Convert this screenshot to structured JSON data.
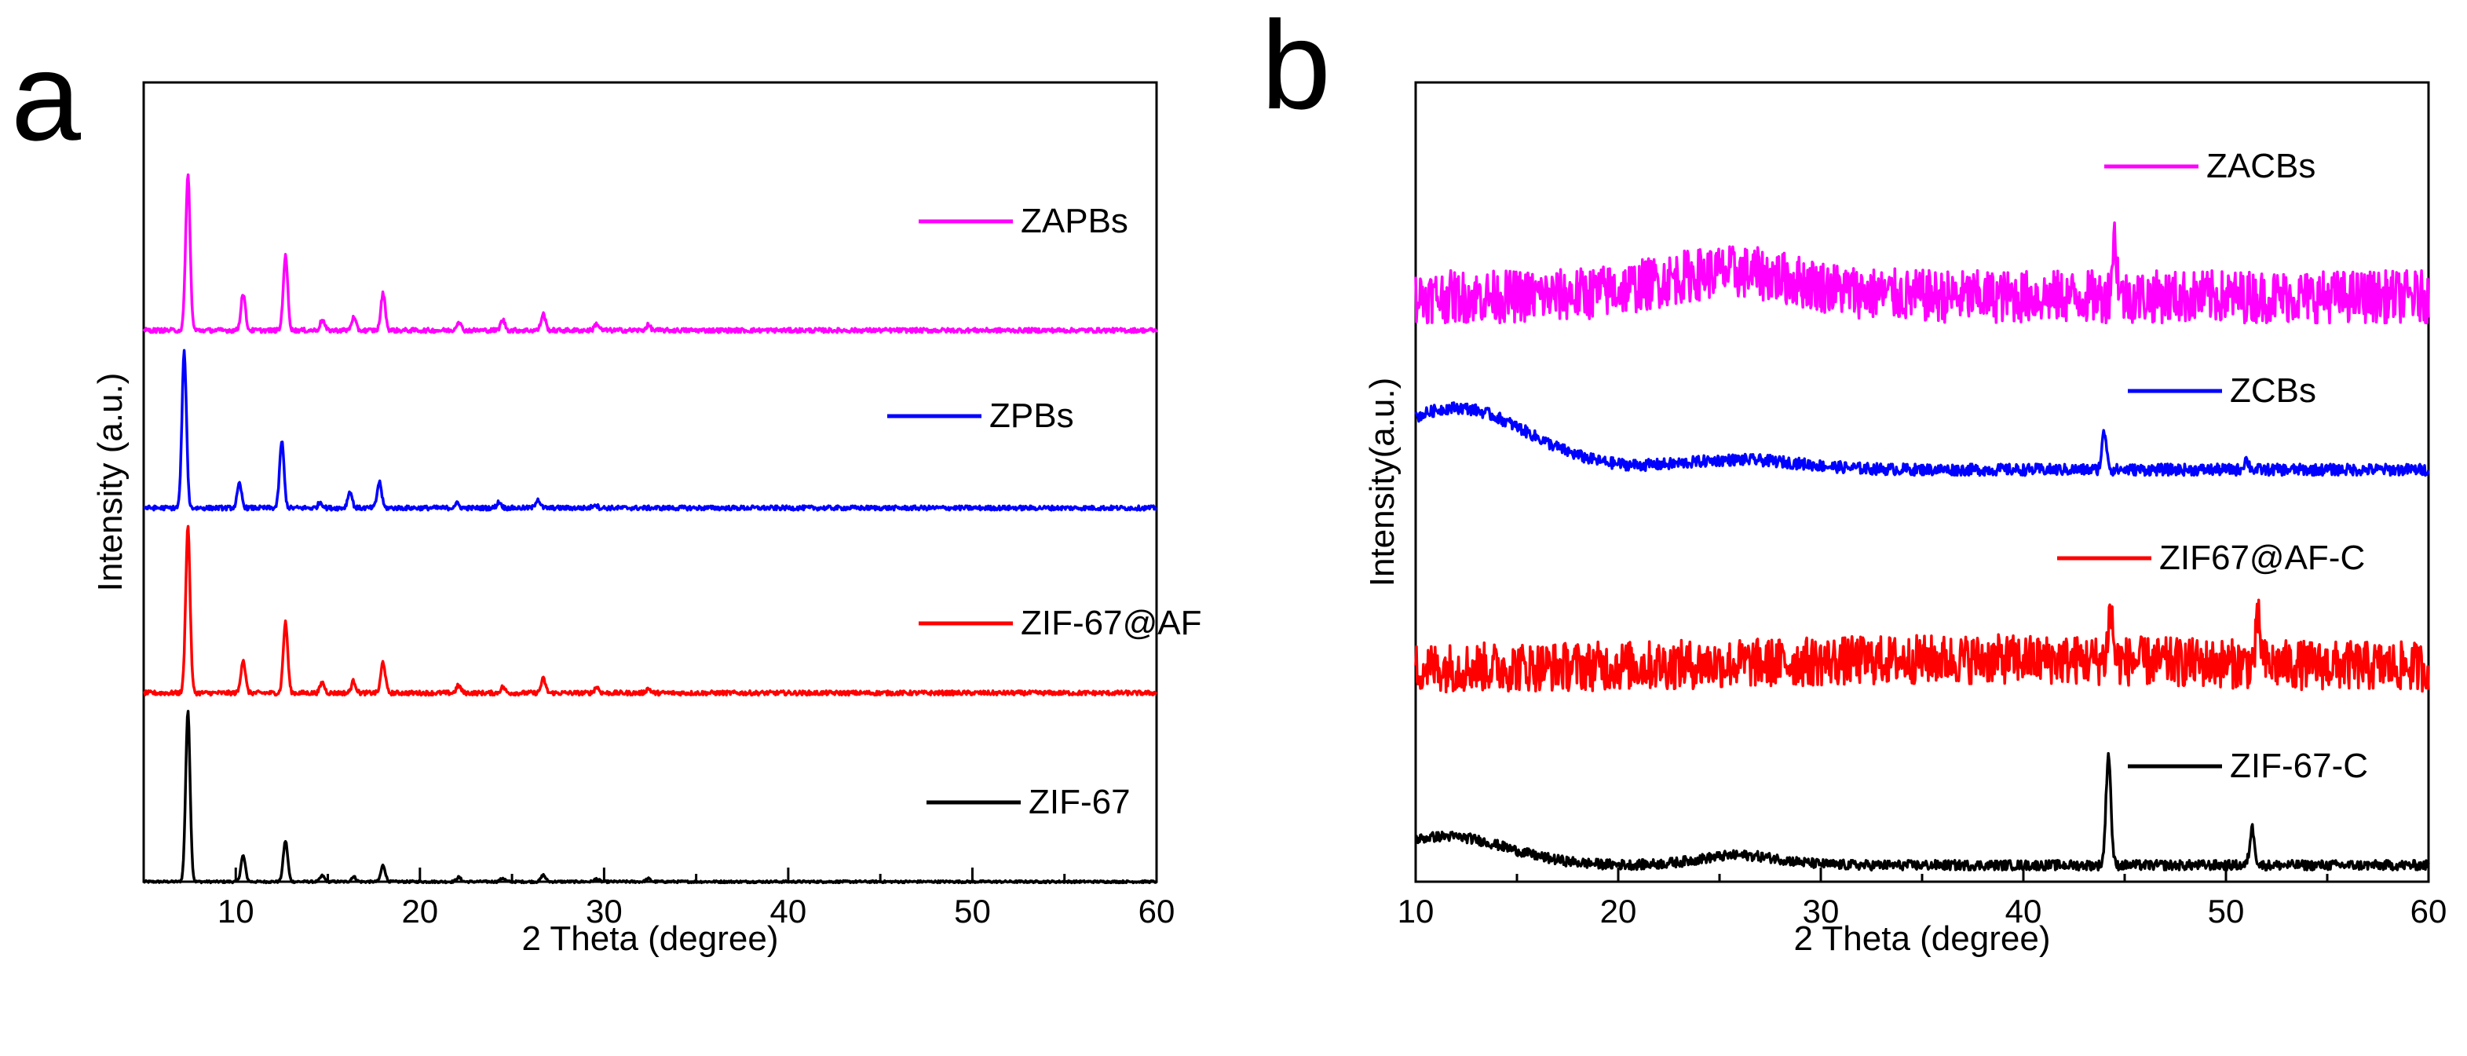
{
  "figure": {
    "panels": [
      {
        "label": "a"
      },
      {
        "label": "b"
      }
    ]
  },
  "chart_data": [
    {
      "panel": "a",
      "type": "line",
      "title": "",
      "xlabel": "2 Theta (degree)",
      "ylabel": "Intensity (a.u.)",
      "xlim": [
        5,
        60
      ],
      "xticks": [
        10,
        20,
        30,
        40,
        50,
        60
      ],
      "ylim": [
        0,
        10.8
      ],
      "legend": "inline, right of each trace",
      "series": [
        {
          "name": "ZIF-67",
          "color": "#000000",
          "baseline": 0.0,
          "noise": 0.015,
          "peaks": [
            [
              7.4,
              2.3
            ],
            [
              10.4,
              0.35
            ],
            [
              12.7,
              0.55
            ],
            [
              14.7,
              0.08
            ],
            [
              16.4,
              0.07
            ],
            [
              18.0,
              0.22
            ],
            [
              22.1,
              0.06
            ],
            [
              24.5,
              0.05
            ],
            [
              26.7,
              0.09
            ],
            [
              29.6,
              0.04
            ],
            [
              32.4,
              0.04
            ]
          ]
        },
        {
          "name": "ZIF-67@AF",
          "color": "#ff0000",
          "baseline": 2.55,
          "noise": 0.03,
          "peaks": [
            [
              7.4,
              2.25
            ],
            [
              10.4,
              0.45
            ],
            [
              12.7,
              0.95
            ],
            [
              14.7,
              0.14
            ],
            [
              16.4,
              0.16
            ],
            [
              18.0,
              0.42
            ],
            [
              22.1,
              0.1
            ],
            [
              24.5,
              0.08
            ],
            [
              26.7,
              0.19
            ],
            [
              29.6,
              0.08
            ],
            [
              32.4,
              0.06
            ]
          ]
        },
        {
          "name": "ZPBs",
          "color": "#0000ff",
          "baseline": 5.05,
          "noise": 0.03,
          "peaks": [
            [
              7.2,
              2.1
            ],
            [
              10.2,
              0.32
            ],
            [
              12.5,
              0.9
            ],
            [
              14.6,
              0.08
            ],
            [
              16.2,
              0.22
            ],
            [
              17.8,
              0.35
            ],
            [
              22.0,
              0.06
            ],
            [
              24.3,
              0.08
            ],
            [
              26.4,
              0.12
            ],
            [
              29.5,
              0.05
            ]
          ]
        },
        {
          "name": "ZAPBs",
          "color": "#ff00ff",
          "baseline": 7.45,
          "noise": 0.03,
          "peaks": [
            [
              7.4,
              2.1
            ],
            [
              10.4,
              0.5
            ],
            [
              12.7,
              1.0
            ],
            [
              14.7,
              0.14
            ],
            [
              16.4,
              0.17
            ],
            [
              18.0,
              0.5
            ],
            [
              22.1,
              0.12
            ],
            [
              24.5,
              0.14
            ],
            [
              26.7,
              0.22
            ],
            [
              29.6,
              0.09
            ],
            [
              32.4,
              0.07
            ]
          ]
        }
      ]
    },
    {
      "panel": "b",
      "type": "line",
      "title": "",
      "xlabel": "2 Theta (degree)",
      "ylabel": "Intensity(a.u.)",
      "xlim": [
        10,
        60
      ],
      "xticks": [
        10,
        20,
        30,
        40,
        50,
        60
      ],
      "ylim": [
        0,
        9.7
      ],
      "legend": "inline, above-right of each trace",
      "series": [
        {
          "name": "ZIF-67-C",
          "color": "#000000",
          "baseline": 0.2,
          "noise": 0.06,
          "hump": [
            [
              11.5,
              0.35,
              3.0
            ],
            [
              26.0,
              0.12,
              2.0
            ]
          ],
          "peaks": [
            [
              44.2,
              1.35
            ],
            [
              51.3,
              0.45
            ]
          ]
        },
        {
          "name": "ZIF67@AF-C",
          "color": "#ff0000",
          "baseline": 2.6,
          "noise": 0.3,
          "hump": [
            [
              38.0,
              0.1,
              10.0
            ]
          ],
          "peaks": [
            [
              44.3,
              0.6
            ],
            [
              51.6,
              0.5
            ]
          ]
        },
        {
          "name": "ZCBs",
          "color": "#0000ff",
          "baseline": 5.0,
          "noise": 0.07,
          "hump": [
            [
              12.0,
              0.75,
              3.5
            ],
            [
              26.0,
              0.12,
              3.0
            ]
          ],
          "peaks": [
            [
              44.0,
              0.45
            ],
            [
              51.0,
              0.12
            ]
          ]
        },
        {
          "name": "ZACBs",
          "color": "#ff00ff",
          "baseline": 7.1,
          "noise": 0.32,
          "hump": [
            [
              25.5,
              0.3,
              3.5
            ]
          ],
          "peaks": [
            [
              44.5,
              0.7
            ]
          ]
        }
      ]
    }
  ]
}
